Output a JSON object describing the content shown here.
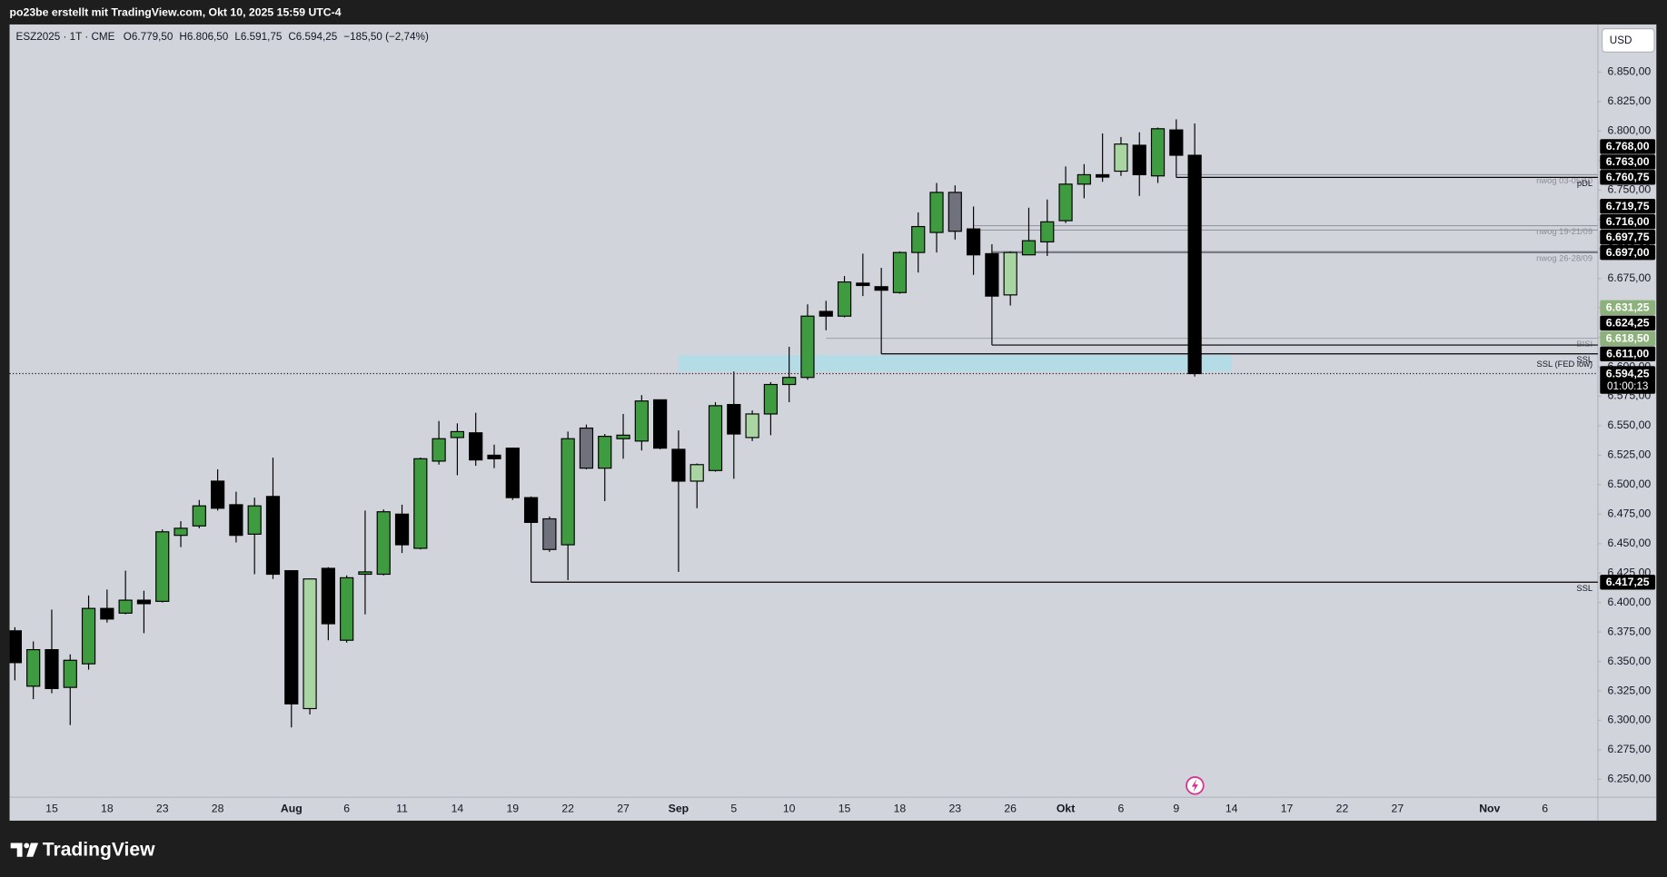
{
  "header": {
    "text": "po23be erstellt mit TradingView.com, Okt 10, 2025 15:59 UTC-4"
  },
  "currency": "USD",
  "footer": {
    "logo": "TradingView"
  },
  "chart_data": {
    "type": "candlestick",
    "legend": {
      "symbol": "ESZ2025 · 1T · CME",
      "values": [
        "O6.779,50",
        "H6.806,50",
        "L6.591,75",
        "C6.594,25",
        "−185,50 (−2,74%)"
      ]
    },
    "categories": [
      null,
      null,
      "15",
      null,
      null,
      "18",
      null,
      null,
      "23",
      null,
      null,
      "28",
      null,
      null,
      null,
      "Aug",
      null,
      null,
      "6",
      null,
      null,
      "11",
      null,
      null,
      "14",
      null,
      null,
      "19",
      null,
      null,
      "22",
      null,
      null,
      "27",
      null,
      null,
      "Sep",
      null,
      null,
      "5",
      null,
      null,
      "10",
      null,
      null,
      "15",
      null,
      null,
      "18",
      null,
      null,
      "23",
      null,
      null,
      "26",
      null,
      null,
      "Okt",
      null,
      null,
      "6",
      null,
      null,
      "9",
      null,
      null,
      "14",
      null,
      null,
      "17",
      null,
      null,
      "22",
      null,
      null,
      "27",
      null,
      null,
      null,
      null,
      "Nov",
      null,
      null,
      "6",
      null
    ],
    "open": [
      6376,
      6329,
      6360,
      6328,
      6348,
      6395,
      6391,
      6402,
      6401,
      6457,
      6465,
      6503,
      6483,
      6458,
      6490,
      6427,
      6310,
      6429,
      6368,
      6424,
      6424,
      6475,
      6446,
      6520,
      6540,
      6544,
      6525,
      6531,
      6489,
      6471,
      6449,
      6548,
      6514,
      6539,
      6537,
      6572,
      6530,
      6503,
      6512,
      6568,
      6540,
      6560,
      6585,
      6591,
      6647,
      6643,
      6671,
      6668,
      6663,
      6697,
      6714,
      6748,
      6717,
      6696,
      6661,
      6695,
      6706,
      6724,
      6755,
      6763,
      6766,
      6788,
      6762,
      6801,
      6779.5,
      null,
      null,
      null,
      null,
      null,
      null,
      null,
      null,
      null,
      null,
      null,
      null,
      null,
      null,
      null,
      null,
      null,
      null,
      null,
      null
    ],
    "high": [
      6379,
      6367,
      6394,
      6356,
      6406,
      6411,
      6427,
      6410,
      6462,
      6469,
      6487,
      6513,
      6494,
      6489,
      6523,
      6427,
      6420,
      6430,
      6423,
      6478,
      6479,
      6483,
      6523,
      6554,
      6552,
      6561,
      6534,
      6531,
      6490,
      6473,
      6545,
      6551,
      6543,
      6560,
      6576,
      6572,
      6546,
      6518,
      6570,
      6596,
      6563,
      6587,
      6617,
      6653,
      6656,
      6677,
      6696,
      6684,
      6698,
      6731,
      6756,
      6754,
      6736,
      6704,
      6698,
      6735,
      6742,
      6770,
      6772,
      6798,
      6795,
      6799,
      6803,
      6810,
      6806.5,
      null,
      null,
      null,
      null,
      null,
      null,
      null,
      null,
      null,
      null,
      null,
      null,
      null,
      null,
      null,
      null,
      null,
      null,
      null,
      null
    ],
    "low": [
      6334,
      6318,
      6323,
      6296,
      6343,
      6383,
      6390,
      6374,
      6400,
      6447,
      6463,
      6478,
      6451,
      6424,
      6420,
      6294,
      6305,
      6368,
      6366,
      6390,
      6423,
      6442,
      6445,
      6517,
      6508,
      6516,
      6514,
      6487,
      6417.25,
      6443,
      6419,
      6513,
      6486,
      6522,
      6529,
      6530,
      6426,
      6480,
      6511,
      6505,
      6537,
      6542,
      6570,
      6589,
      6631,
      6642,
      6660,
      6611,
      6662,
      6680,
      6697,
      6708,
      6678,
      6618.5,
      6652,
      6695,
      6694,
      6722,
      6743,
      6757,
      6762,
      6745,
      6756,
      6760.75,
      6591.75,
      null,
      null,
      null,
      null,
      null,
      null,
      null,
      null,
      null,
      null,
      null,
      null,
      null,
      null,
      null,
      null,
      null,
      null,
      null,
      null
    ],
    "close": [
      6349,
      6360,
      6327,
      6351,
      6395,
      6386,
      6402,
      6399,
      6460,
      6463,
      6482,
      6480,
      6457,
      6482,
      6424,
      6314,
      6420,
      6382,
      6421,
      6426,
      6477,
      6449,
      6522,
      6539,
      6545,
      6521,
      6522,
      6489,
      6468,
      6445,
      6539,
      6514,
      6541,
      6542,
      6571,
      6531,
      6503,
      6517,
      6567,
      6543,
      6560,
      6585,
      6591,
      6643,
      6643,
      6672,
      6669,
      6665,
      6697,
      6719,
      6748,
      6715,
      6695,
      6660,
      6697,
      6707,
      6723,
      6755,
      6763,
      6761,
      6789,
      6763,
      6802,
      6779.5,
      6594.25,
      null,
      null,
      null,
      null,
      null,
      null,
      null,
      null,
      null,
      null,
      null,
      null,
      null,
      null,
      null,
      null,
      null,
      null,
      null,
      null
    ],
    "colors": [
      "#000000",
      "#3f9b3f",
      "#000000",
      "#3f9b3f",
      "#3f9b3f",
      "#000000",
      "#3f9b3f",
      "#000000",
      "#3f9b3f",
      "#3f9b3f",
      "#3f9b3f",
      "#000000",
      "#000000",
      "#3f9b3f",
      "#000000",
      "#000000",
      "#a8d5a2",
      "#000000",
      "#3f9b3f",
      "#3f9b3f",
      "#3f9b3f",
      "#000000",
      "#3f9b3f",
      "#3f9b3f",
      "#3f9b3f",
      "#000000",
      "#000000",
      "#000000",
      "#000000",
      "#6f717c",
      "#3f9b3f",
      "#6f717c",
      "#3f9b3f",
      "#3f9b3f",
      "#3f9b3f",
      "#000000",
      "#000000",
      "#a8d5a2",
      "#3f9b3f",
      "#000000",
      "#a8d5a2",
      "#3f9b3f",
      "#3f9b3f",
      "#3f9b3f",
      "#000000",
      "#3f9b3f",
      "#000000",
      "#000000",
      "#3f9b3f",
      "#3f9b3f",
      "#3f9b3f",
      "#6f717c",
      "#000000",
      "#000000",
      "#a8d5a2",
      "#3f9b3f",
      "#3f9b3f",
      "#3f9b3f",
      "#3f9b3f",
      "#000000",
      "#a8d5a2",
      "#000000",
      "#3f9b3f",
      "#000000",
      "#000000",
      null,
      null,
      null,
      null,
      null,
      null,
      null,
      null,
      null,
      null,
      null,
      null,
      null,
      null,
      null,
      null,
      null,
      null,
      null,
      null
    ],
    "ylim": [
      6234.75,
      6890.5
    ],
    "yticks": [
      {
        "value": 6250,
        "label": "6.250,00"
      },
      {
        "value": 6275,
        "label": "6.275,00"
      },
      {
        "value": 6300,
        "label": "6.300,00"
      },
      {
        "value": 6325,
        "label": "6.325,00"
      },
      {
        "value": 6350,
        "label": "6.350,00"
      },
      {
        "value": 6375,
        "label": "6.375,00"
      },
      {
        "value": 6400,
        "label": "6.400,00"
      },
      {
        "value": 6425,
        "label": "6.425,00"
      },
      {
        "value": 6450,
        "label": "6.450,00"
      },
      {
        "value": 6475,
        "label": "6.475,00"
      },
      {
        "value": 6500,
        "label": "6.500,00"
      },
      {
        "value": 6525,
        "label": "6.525,00"
      },
      {
        "value": 6550,
        "label": "6.550,00"
      },
      {
        "value": 6575,
        "label": "6.575,00"
      },
      {
        "value": 6600,
        "label": "6.600,00"
      },
      {
        "value": 6625,
        "label": "6.625,00"
      },
      {
        "value": 6650,
        "label": "6.650,00"
      },
      {
        "value": 6675,
        "label": "6.675,00"
      },
      {
        "value": 6700,
        "label": "6.700,00"
      },
      {
        "value": 6725,
        "label": "6.725,00"
      },
      {
        "value": 6750,
        "label": "6.750,00"
      },
      {
        "value": 6775,
        "label": "6.775,00"
      },
      {
        "value": 6800,
        "label": "6.800,00"
      },
      {
        "value": 6825,
        "label": "6.825,00"
      },
      {
        "value": 6850,
        "label": "6.850,00"
      }
    ],
    "grid": false,
    "levels": [
      {
        "value": 6768,
        "label": "6.768,00",
        "tag_color": "#000000"
      },
      {
        "value": 6763,
        "label": "6.763,00",
        "tag_color": "#000000",
        "line_text": "nwog 03-05/10",
        "line_color": "#9598a1",
        "start": 63
      },
      {
        "value": 6760.75,
        "label": "6.760,75",
        "tag_color": "#000000",
        "line_text": "pDL",
        "line_color": "#000000",
        "start": 63
      },
      {
        "value": 6719.75,
        "label": "6.719,75",
        "tag_color": "#000000",
        "line_text": "nwog 19-21/09",
        "line_color": "#9598a1",
        "start": 52
      },
      {
        "value": 6716,
        "label": "6.716,00",
        "tag_color": "#000000",
        "line_color": "#9598a1",
        "start": 52
      },
      {
        "value": 6697.75,
        "label": "6.697,75",
        "tag_color": "#000000",
        "line_color": "#9598a1",
        "start": 53
      },
      {
        "value": 6697,
        "label": "6.697,00",
        "tag_color": "#000000",
        "line_text": "nwog 26-28/09",
        "line_color": "#5d606b",
        "start": 53
      },
      {
        "value": 6631.25,
        "label": "6.631,25",
        "tag_color": "#8db17a"
      },
      {
        "value": 6624.25,
        "label": "6.624,25",
        "tag_color": "#000000",
        "line_text": "BISI",
        "line_color": "#a3a6ae",
        "start": 44
      },
      {
        "value": 6618.5,
        "label": "6.618,50",
        "tag_color": "#8db17a",
        "line_color": "#000000",
        "start": 53
      },
      {
        "value": 6611,
        "label": "6.611,00",
        "tag_color": "#000000",
        "line_text": "SSL",
        "line_color": "#000000",
        "start": 47
      },
      {
        "value": 6417.25,
        "label": "6.417,25",
        "tag_color": "#000000",
        "line_text": "SSL",
        "line_color": "#000000",
        "start": 28
      }
    ],
    "current_price": {
      "value": 6594.25,
      "label": "6.594,25",
      "countdown": "01:00:13",
      "tag_color": "#000000"
    },
    "zone": {
      "top": 6610,
      "bottom": 6596,
      "start": 36,
      "end": 66,
      "text": "SSL (FED low)",
      "color": "#a9dfe9"
    }
  }
}
